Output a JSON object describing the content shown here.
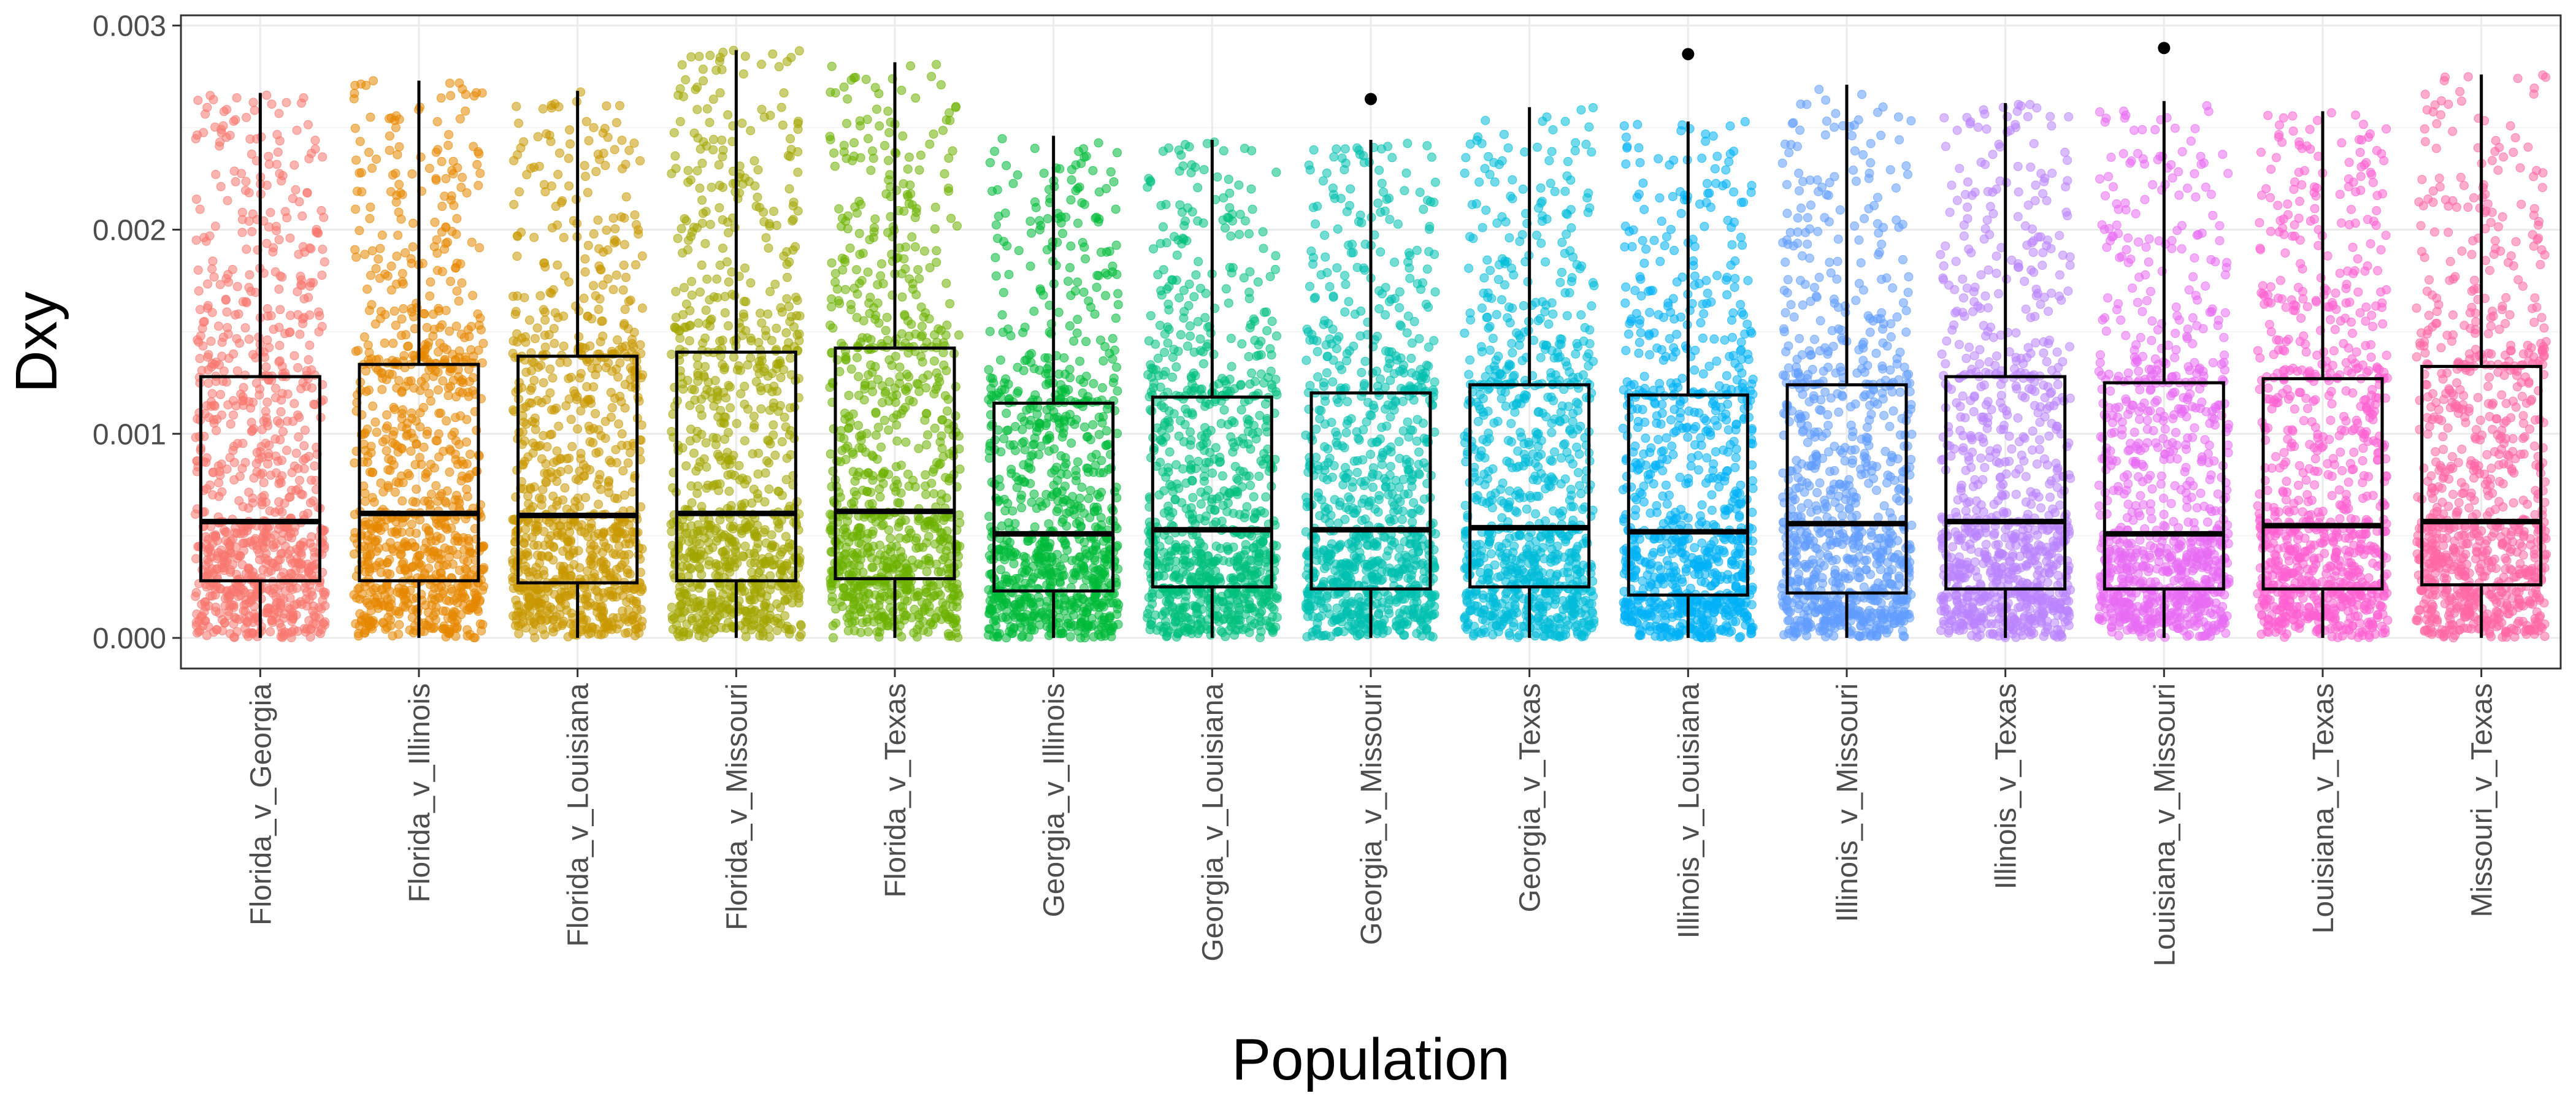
{
  "chart_data": {
    "type": "boxplot",
    "xlabel": "Population",
    "ylabel": "Dxy",
    "ylim": [
      -0.00015,
      0.00305
    ],
    "yticks": [
      0.0,
      0.001,
      0.002,
      0.003
    ],
    "ytick_labels": [
      "0.000",
      "0.001",
      "0.002",
      "0.003"
    ],
    "grid": true,
    "legend": "none",
    "jitter_points": "overlaid per category, ~900 each, colored by category",
    "categories": [
      "Florida_v_Georgia",
      "Florida_v_Illinois",
      "Florida_v_Louisiana",
      "Florida_v_Missouri",
      "Florida_v_Texas",
      "Georgia_v_Illinois",
      "Georgia_v_Louisiana",
      "Georgia_v_Missouri",
      "Georgia_v_Texas",
      "Illinois_v_Louisiana",
      "Illinois_v_Missouri",
      "Illinois_v_Texas",
      "Louisiana_v_Missouri",
      "Louisiana_v_Texas",
      "Missouri_v_Texas"
    ],
    "colors": [
      "#F8766D",
      "#E58700",
      "#C99800",
      "#A3A500",
      "#6BB100",
      "#00BA38",
      "#00BF7D",
      "#00C0AF",
      "#00BCD8",
      "#00B0F6",
      "#619CFF",
      "#B983FF",
      "#E76BF3",
      "#FD61D1",
      "#FF67A4"
    ],
    "boxes": [
      {
        "whisker_low": 0.0,
        "q1": 0.00028,
        "median": 0.00057,
        "q3": 0.00128,
        "whisker_high": 0.00267,
        "outliers": []
      },
      {
        "whisker_low": 0.0,
        "q1": 0.00028,
        "median": 0.00061,
        "q3": 0.00134,
        "whisker_high": 0.00273,
        "outliers": []
      },
      {
        "whisker_low": 0.0,
        "q1": 0.00027,
        "median": 0.0006,
        "q3": 0.00138,
        "whisker_high": 0.00268,
        "outliers": []
      },
      {
        "whisker_low": 0.0,
        "q1": 0.00028,
        "median": 0.00061,
        "q3": 0.0014,
        "whisker_high": 0.00288,
        "outliers": []
      },
      {
        "whisker_low": 0.0,
        "q1": 0.00029,
        "median": 0.00062,
        "q3": 0.00142,
        "whisker_high": 0.00282,
        "outliers": []
      },
      {
        "whisker_low": 0.0,
        "q1": 0.00023,
        "median": 0.00051,
        "q3": 0.00115,
        "whisker_high": 0.00246,
        "outliers": []
      },
      {
        "whisker_low": 0.0,
        "q1": 0.00025,
        "median": 0.00053,
        "q3": 0.00118,
        "whisker_high": 0.00244,
        "outliers": []
      },
      {
        "whisker_low": 0.0,
        "q1": 0.00024,
        "median": 0.00053,
        "q3": 0.0012,
        "whisker_high": 0.00244,
        "outliers": [
          0.00264
        ]
      },
      {
        "whisker_low": 0.0,
        "q1": 0.00025,
        "median": 0.00054,
        "q3": 0.00124,
        "whisker_high": 0.0026,
        "outliers": []
      },
      {
        "whisker_low": 0.0,
        "q1": 0.00021,
        "median": 0.00052,
        "q3": 0.00119,
        "whisker_high": 0.00253,
        "outliers": [
          0.00286
        ]
      },
      {
        "whisker_low": 0.0,
        "q1": 0.00022,
        "median": 0.00056,
        "q3": 0.00124,
        "whisker_high": 0.00271,
        "outliers": []
      },
      {
        "whisker_low": 0.0,
        "q1": 0.00024,
        "median": 0.00057,
        "q3": 0.00128,
        "whisker_high": 0.00262,
        "outliers": []
      },
      {
        "whisker_low": 0.0,
        "q1": 0.00024,
        "median": 0.00051,
        "q3": 0.00125,
        "whisker_high": 0.00263,
        "outliers": [
          0.00289
        ]
      },
      {
        "whisker_low": 0.0,
        "q1": 0.00024,
        "median": 0.00055,
        "q3": 0.00127,
        "whisker_high": 0.00258,
        "outliers": []
      },
      {
        "whisker_low": 0.0,
        "q1": 0.00026,
        "median": 0.00057,
        "q3": 0.00133,
        "whisker_high": 0.00276,
        "outliers": []
      }
    ]
  }
}
